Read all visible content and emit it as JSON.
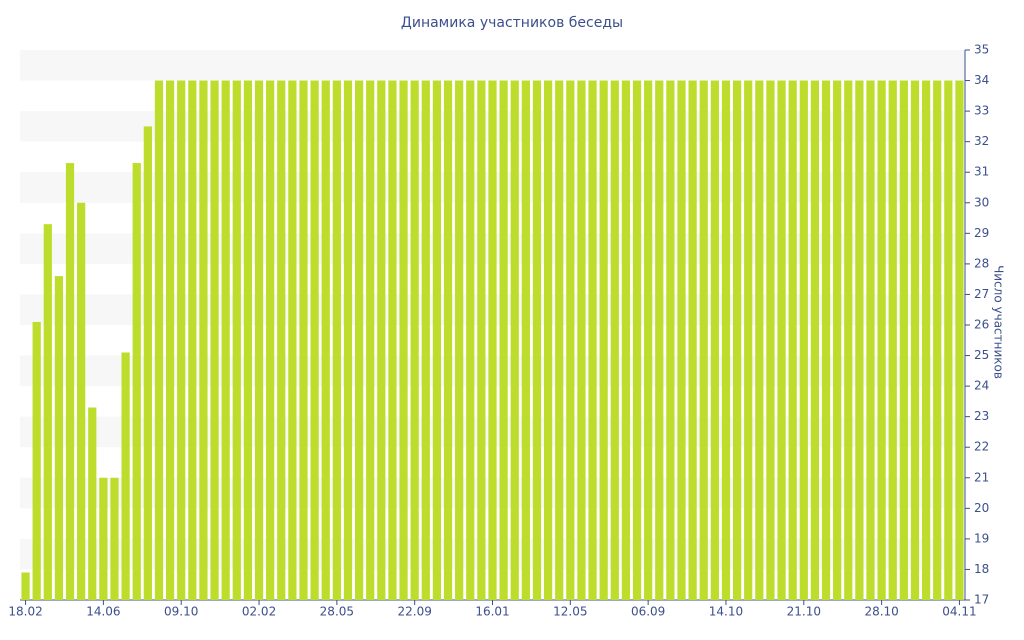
{
  "chart_data": {
    "type": "bar",
    "title": "Динамика участников беседы",
    "y_label": "Число участников",
    "categories": [
      "18.02",
      null,
      null,
      null,
      null,
      null,
      null,
      "14.06",
      null,
      null,
      null,
      null,
      null,
      null,
      "09.10",
      null,
      null,
      null,
      null,
      null,
      null,
      "02.02",
      null,
      null,
      null,
      null,
      null,
      null,
      "28.05",
      null,
      null,
      null,
      null,
      null,
      null,
      "22.09",
      null,
      null,
      null,
      null,
      null,
      null,
      "16.01",
      null,
      null,
      null,
      null,
      null,
      null,
      "12.05",
      null,
      null,
      null,
      null,
      null,
      null,
      "06.09",
      null,
      null,
      null,
      null,
      null,
      null,
      "14.10",
      null,
      null,
      null,
      null,
      null,
      null,
      "21.10",
      null,
      null,
      null,
      null,
      null,
      null,
      "28.10",
      null,
      null,
      null,
      null,
      null,
      null,
      "04.11"
    ],
    "values": [
      17.9,
      26.1,
      29.3,
      27.6,
      31.3,
      30.0,
      23.3,
      21.0,
      21.0,
      25.1,
      31.3,
      32.5,
      34,
      34,
      34,
      34,
      34,
      34,
      34,
      34,
      34,
      34,
      34,
      34,
      34,
      34,
      34,
      34,
      34,
      34,
      34,
      34,
      34,
      34,
      34,
      34,
      34,
      34,
      34,
      34,
      34,
      34,
      34,
      34,
      34,
      34,
      34,
      34,
      34,
      34,
      34,
      34,
      34,
      34,
      34,
      34,
      34,
      34,
      34,
      34,
      34,
      34,
      34,
      34,
      34,
      34,
      34,
      34,
      34,
      34,
      34,
      34,
      34,
      34,
      34,
      34,
      34,
      34,
      34,
      34,
      34,
      34,
      34,
      34,
      34
    ],
    "color": "#bddd2d",
    "ylim": [
      17,
      35
    ],
    "yticks": [
      17,
      18,
      19,
      20,
      21,
      22,
      23,
      24,
      25,
      26,
      27,
      28,
      29,
      30,
      31,
      32,
      33,
      34,
      35
    ],
    "y_axis_side": "right",
    "banded_grid": true
  }
}
